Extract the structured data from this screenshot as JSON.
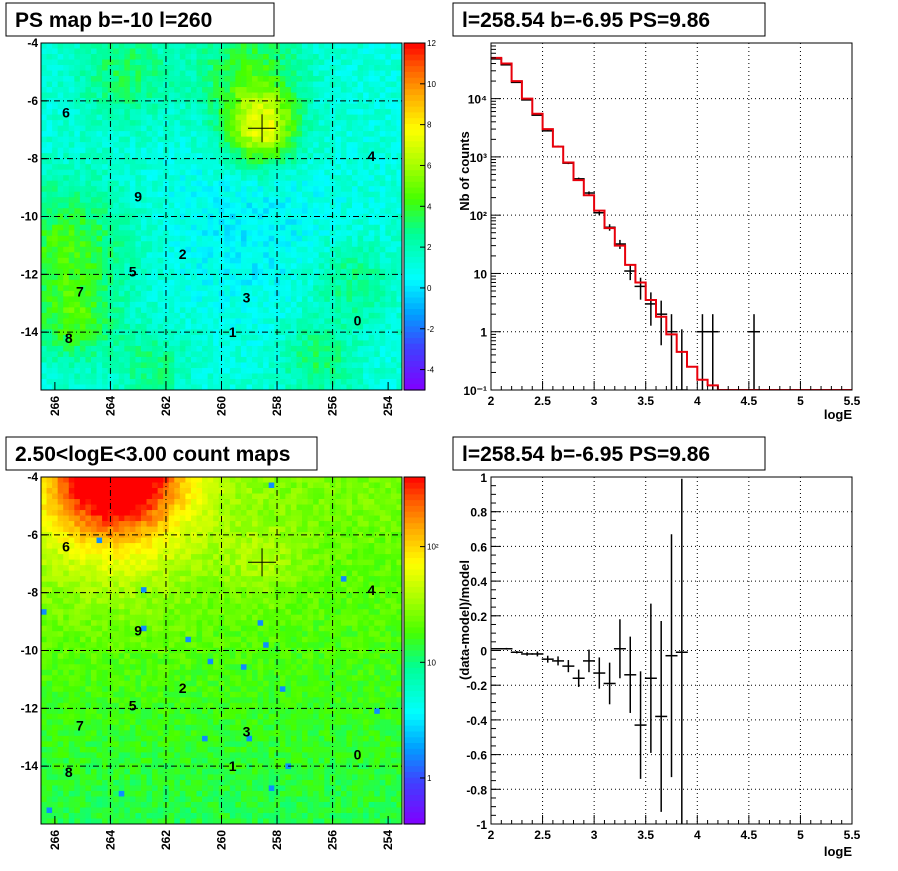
{
  "panels": {
    "ps_map": {
      "title": "PS map b=-10 l=260",
      "x_ticks": [
        "266",
        "264",
        "262",
        "260",
        "258",
        "256",
        "254"
      ],
      "y_ticks": [
        "-4",
        "-6",
        "-8",
        "-10",
        "-12",
        "-14"
      ],
      "z_ticks": [
        "12",
        "10",
        "8",
        "6",
        "4",
        "2",
        "0",
        "-2",
        "-4"
      ],
      "labels": [
        "0",
        "1",
        "2",
        "3",
        "4",
        "5",
        "6",
        "7",
        "8",
        "9"
      ]
    },
    "count_map": {
      "title": "2.50<logE<3.00 count maps",
      "x_ticks": [
        "266",
        "264",
        "262",
        "260",
        "258",
        "256",
        "254"
      ],
      "y_ticks": [
        "-4",
        "-6",
        "-8",
        "-10",
        "-12",
        "-14"
      ],
      "z_ticks": [
        "10²",
        "10",
        "1"
      ],
      "labels": [
        "0",
        "1",
        "2",
        "3",
        "4",
        "5",
        "6",
        "7",
        "8",
        "9"
      ]
    },
    "spectrum": {
      "title": "l=258.54 b=-6.95 PS=9.86",
      "xlabel": "logE",
      "ylabel": "Nb of counts",
      "x_ticks": [
        "2",
        "2.5",
        "3",
        "3.5",
        "4",
        "4.5",
        "5",
        "5.5"
      ],
      "y_ticks": [
        "10⁻¹",
        "1",
        "10",
        "10²",
        "10³",
        "10⁴"
      ]
    },
    "residual": {
      "title": "l=258.54 b=-6.95 PS=9.86",
      "xlabel": "logE",
      "ylabel": "(data-model)/model",
      "x_ticks": [
        "2",
        "2.5",
        "3",
        "3.5",
        "4",
        "4.5",
        "5",
        "5.5"
      ],
      "y_ticks": [
        "1",
        "0.8",
        "0.6",
        "0.4",
        "0.2",
        "0",
        "-0.2",
        "-0.4",
        "-0.6",
        "-0.8",
        "-1"
      ]
    }
  },
  "colors": {
    "data": "#000000",
    "model": "#e8000b"
  },
  "chart_data": [
    {
      "type": "heatmap",
      "title": "PS map b=-10 l=260",
      "xlim": [
        266.5,
        253.5
      ],
      "ylim": [
        -16,
        -4
      ],
      "zlim": [
        -5,
        12
      ],
      "source_marker": {
        "l": 258.54,
        "b": -6.95
      },
      "labeled_sources": [
        {
          "label": "6",
          "l": 265.6,
          "b": -6.4
        },
        {
          "label": "4",
          "l": 254.6,
          "b": -7.9
        },
        {
          "label": "9",
          "l": 263.0,
          "b": -9.3
        },
        {
          "label": "2",
          "l": 261.4,
          "b": -11.3
        },
        {
          "label": "5",
          "l": 263.2,
          "b": -11.9
        },
        {
          "label": "7",
          "l": 265.1,
          "b": -12.6
        },
        {
          "label": "3",
          "l": 259.1,
          "b": -12.8
        },
        {
          "label": "0",
          "l": 255.1,
          "b": -13.6
        },
        {
          "label": "1",
          "l": 259.6,
          "b": -14.0
        },
        {
          "label": "8",
          "l": 265.5,
          "b": -14.2
        }
      ]
    },
    {
      "type": "heatmap",
      "title": "2.50<logE<3.00 count maps",
      "xlim": [
        266.5,
        253.5
      ],
      "ylim": [
        -16,
        -4
      ],
      "zscale": "log",
      "zlim": [
        0.4,
        400
      ],
      "source_marker": {
        "l": 258.54,
        "b": -6.95
      },
      "labeled_sources": [
        {
          "label": "6",
          "l": 265.6,
          "b": -6.4
        },
        {
          "label": "4",
          "l": 254.6,
          "b": -7.9
        },
        {
          "label": "9",
          "l": 263.0,
          "b": -9.3
        },
        {
          "label": "2",
          "l": 261.4,
          "b": -11.3
        },
        {
          "label": "5",
          "l": 263.2,
          "b": -11.9
        },
        {
          "label": "7",
          "l": 265.1,
          "b": -12.6
        },
        {
          "label": "3",
          "l": 259.1,
          "b": -12.8
        },
        {
          "label": "0",
          "l": 255.1,
          "b": -13.6
        },
        {
          "label": "1",
          "l": 259.6,
          "b": -14.0
        },
        {
          "label": "8",
          "l": 265.5,
          "b": -14.2
        }
      ]
    },
    {
      "type": "line",
      "title": "l=258.54 b=-6.95 PS=9.86",
      "xlabel": "logE",
      "ylabel": "Nb of counts",
      "xlim": [
        2,
        5.5
      ],
      "ylim": [
        0.1,
        90000
      ],
      "yscale": "log",
      "grid": true,
      "series": [
        {
          "name": "",
          "style": "step",
          "color": "#e8000b",
          "bin_edges": [
            2.0,
            2.1,
            2.2,
            2.3,
            2.4,
            2.5,
            2.6,
            2.7,
            2.8,
            2.9,
            3.0,
            3.1,
            3.2,
            3.3,
            3.4,
            3.5,
            3.6,
            3.7,
            3.8,
            3.9,
            4.0,
            4.1,
            4.2,
            4.3,
            5.5
          ],
          "values": [
            50000,
            40000,
            20000,
            10000,
            5500,
            3000,
            1500,
            800,
            400,
            220,
            120,
            60,
            30,
            14,
            7,
            3.5,
            1.8,
            0.9,
            0.45,
            0.25,
            0.15,
            0.12,
            0.1,
            0.1
          ]
        },
        {
          "name": "",
          "style": "errorbar",
          "color": "#000000",
          "x": [
            2.05,
            2.15,
            2.25,
            2.35,
            2.45,
            2.55,
            2.65,
            2.75,
            2.85,
            2.95,
            3.05,
            3.15,
            3.25,
            3.35,
            3.45,
            3.55,
            3.65,
            3.75,
            3.85,
            4.05,
            4.15,
            4.55
          ],
          "y": [
            48000,
            38000,
            19000,
            9500,
            5200,
            2800,
            1500,
            780,
            420,
            240,
            110,
            62,
            32,
            11,
            6,
            3,
            2,
            1,
            0.1,
            1,
            1,
            1
          ]
        }
      ]
    },
    {
      "type": "scatter",
      "title": "l=258.54 b=-6.95 PS=9.86",
      "xlabel": "logE",
      "ylabel": "(data-model)/model",
      "xlim": [
        2,
        5.5
      ],
      "ylim": [
        -1,
        1
      ],
      "grid": true,
      "series": [
        {
          "name": "",
          "color": "#000000",
          "x": [
            2.05,
            2.15,
            2.25,
            2.35,
            2.45,
            2.55,
            2.65,
            2.75,
            2.85,
            2.95,
            3.05,
            3.15,
            3.25,
            3.35,
            3.45,
            3.55,
            3.65,
            3.75,
            3.85
          ],
          "y": [
            0.01,
            0.01,
            -0.01,
            -0.02,
            -0.02,
            -0.05,
            -0.06,
            -0.09,
            -0.16,
            -0.06,
            -0.13,
            -0.19,
            0.01,
            -0.14,
            -0.43,
            -0.16,
            -0.38,
            -0.03,
            -0.01
          ],
          "yerr": [
            0.003,
            0.005,
            0.007,
            0.01,
            0.014,
            0.02,
            0.026,
            0.035,
            0.05,
            0.065,
            0.09,
            0.12,
            0.17,
            0.22,
            0.31,
            0.43,
            0.55,
            0.7,
            1.0
          ]
        }
      ]
    }
  ]
}
